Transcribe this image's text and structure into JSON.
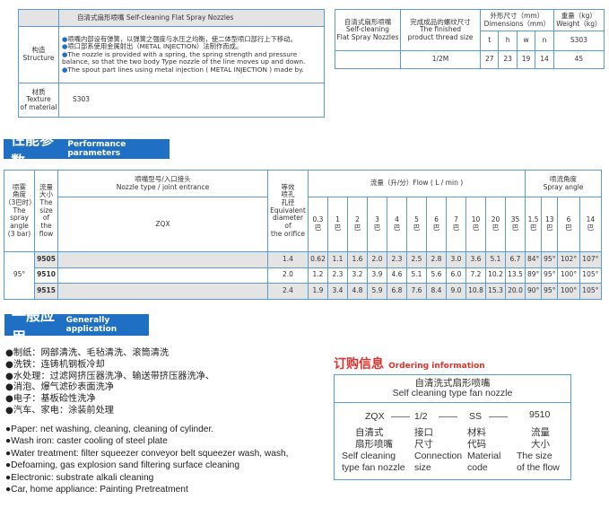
{
  "structure_table": {
    "title": "自清式扇形喷嘴 Self-cleaning Flat Spray Nozzles",
    "structure_label": [
      "构造",
      "Structure"
    ],
    "structure_items": [
      "喷嘴内部设有弹簧，以弹簧之强度与水压之均衡，使二体型喷口部行上下移动。",
      "喷口部系使用金属射出（METAL INJECTION）法制作而成。",
      "The nozzle is provided with a spring, the spring strength and pressure balance, so that the two body Type nozzle of the line moves up and down.",
      "The spout part lines using metal injection ( METAL INJECTION ) made by."
    ],
    "material_label": [
      "材质",
      "Texture",
      "of material"
    ],
    "material_value": "S303"
  },
  "dims_table": {
    "col1": [
      "自清式扇形喷嘴",
      "Self-cleaning",
      "Flat Spray Nozzles"
    ],
    "col2": [
      "完成成品的螺纹尺寸",
      "The finished",
      "product thread size"
    ],
    "dims": [
      "外形尺寸（mm）",
      "Dimensions（mm）"
    ],
    "weight": [
      "重量（kg）",
      "Weight（kg）"
    ],
    "sub": [
      "t",
      "h",
      "w",
      "n",
      "S303"
    ],
    "row": [
      "",
      "1/2M",
      "27",
      "23",
      "19",
      "14",
      "45"
    ]
  },
  "performance": {
    "banner_zh": "性能参数",
    "banner_en": "Performance parameters",
    "h_angle": [
      "喷雾",
      "角度",
      "（3巴时）",
      "The",
      "spray",
      "angle",
      "(3 bar)"
    ],
    "h_size": [
      "流量",
      "大小",
      "The",
      "size",
      "of",
      "the",
      "flow"
    ],
    "h_type": [
      "喷嘴型号/入口接头",
      "Nozzle type / joint entrance"
    ],
    "h_zqx": "ZQX",
    "h_equiv": [
      "等效",
      "喷孔",
      "孔径",
      "Equivalent",
      "diameter",
      "of",
      "the orifice"
    ],
    "h_flow": "流量（升/分）Flow ( L / min )",
    "h_spray": [
      "喷流角度",
      "Spray angle"
    ],
    "pressures": [
      "0.3",
      "1",
      "2",
      "3",
      "4",
      "5",
      "6",
      "7",
      "10",
      "20",
      "35",
      "1.5",
      "13",
      "6",
      "14"
    ],
    "unit": "巴",
    "angle": "95°",
    "rows": [
      {
        "size": "9505",
        "equiv": "1.4",
        "vals": [
          "0.62",
          "1.1",
          "1.6",
          "2.0",
          "2.3",
          "2.5",
          "2.8",
          "3.0",
          "3.6",
          "5.1",
          "6.7",
          "84°",
          "95°",
          "102°",
          "107°"
        ]
      },
      {
        "size": "9510",
        "equiv": "2.0",
        "vals": [
          "1.2",
          "2.3",
          "3.2",
          "3.9",
          "4.6",
          "5.1",
          "5.6",
          "6.0",
          "7.2",
          "10.2",
          "13.5",
          "89°",
          "95°",
          "100°",
          "105°"
        ]
      },
      {
        "size": "9515",
        "equiv": "2.4",
        "vals": [
          "1.9",
          "3.4",
          "4.8",
          "5.9",
          "6.8",
          "7.6",
          "8.4",
          "9.0",
          "10.8",
          "15.3",
          "20.0",
          "90°",
          "95°",
          "100°",
          "105°"
        ]
      }
    ]
  },
  "application": {
    "banner_zh": "一般应用",
    "banner_en": "Generally application",
    "zh": [
      "●制纸：网部清洗、毛毡清洗、滚筒清洗",
      "●洗铁：连铸机钢板冷却",
      "●水处理：过滤网挤压器洗净、输送带挤压器洗净、",
      "●消泡、爆气滤砂表面洗净",
      "●电子：基板硷性洗净",
      "●汽车、家电：涂装前处理"
    ],
    "en": [
      "●Paper: net washing, cleaning, cleaning of cylinder.",
      "●Wash iron: caster cooling of steel plate",
      "●Water treatment: filter squeezer conveyor belt squeezer wash, wash,",
      "●Defoaming, gas explosion sand filtering surface cleaning",
      "●Electronic: substrate alkali cleaning",
      "●Car, home appliance: Painting Pretreatment"
    ]
  },
  "ordering": {
    "title_zh": "订购信息",
    "title_en": "Ordering information",
    "header": [
      "自清洗式扇形喷嘴",
      "Self cleaning type fan nozzle"
    ],
    "codes": [
      "ZQX",
      "——",
      "1/2",
      "——",
      "SS",
      "——",
      "9510"
    ],
    "labels": [
      [
        "自清式",
        "扇形喷嘴",
        "Self cleaning",
        "type fan nozzle"
      ],
      [
        "接口",
        "尺寸",
        "Connection",
        "size"
      ],
      [
        "材料",
        "代码",
        "Material",
        "code"
      ],
      [
        "流量",
        "大小",
        "The size",
        "of the flow"
      ]
    ]
  },
  "colors": {
    "accent": "#1f6fc4",
    "border": "#5b9bd5",
    "order_title": "#e0322c"
  }
}
